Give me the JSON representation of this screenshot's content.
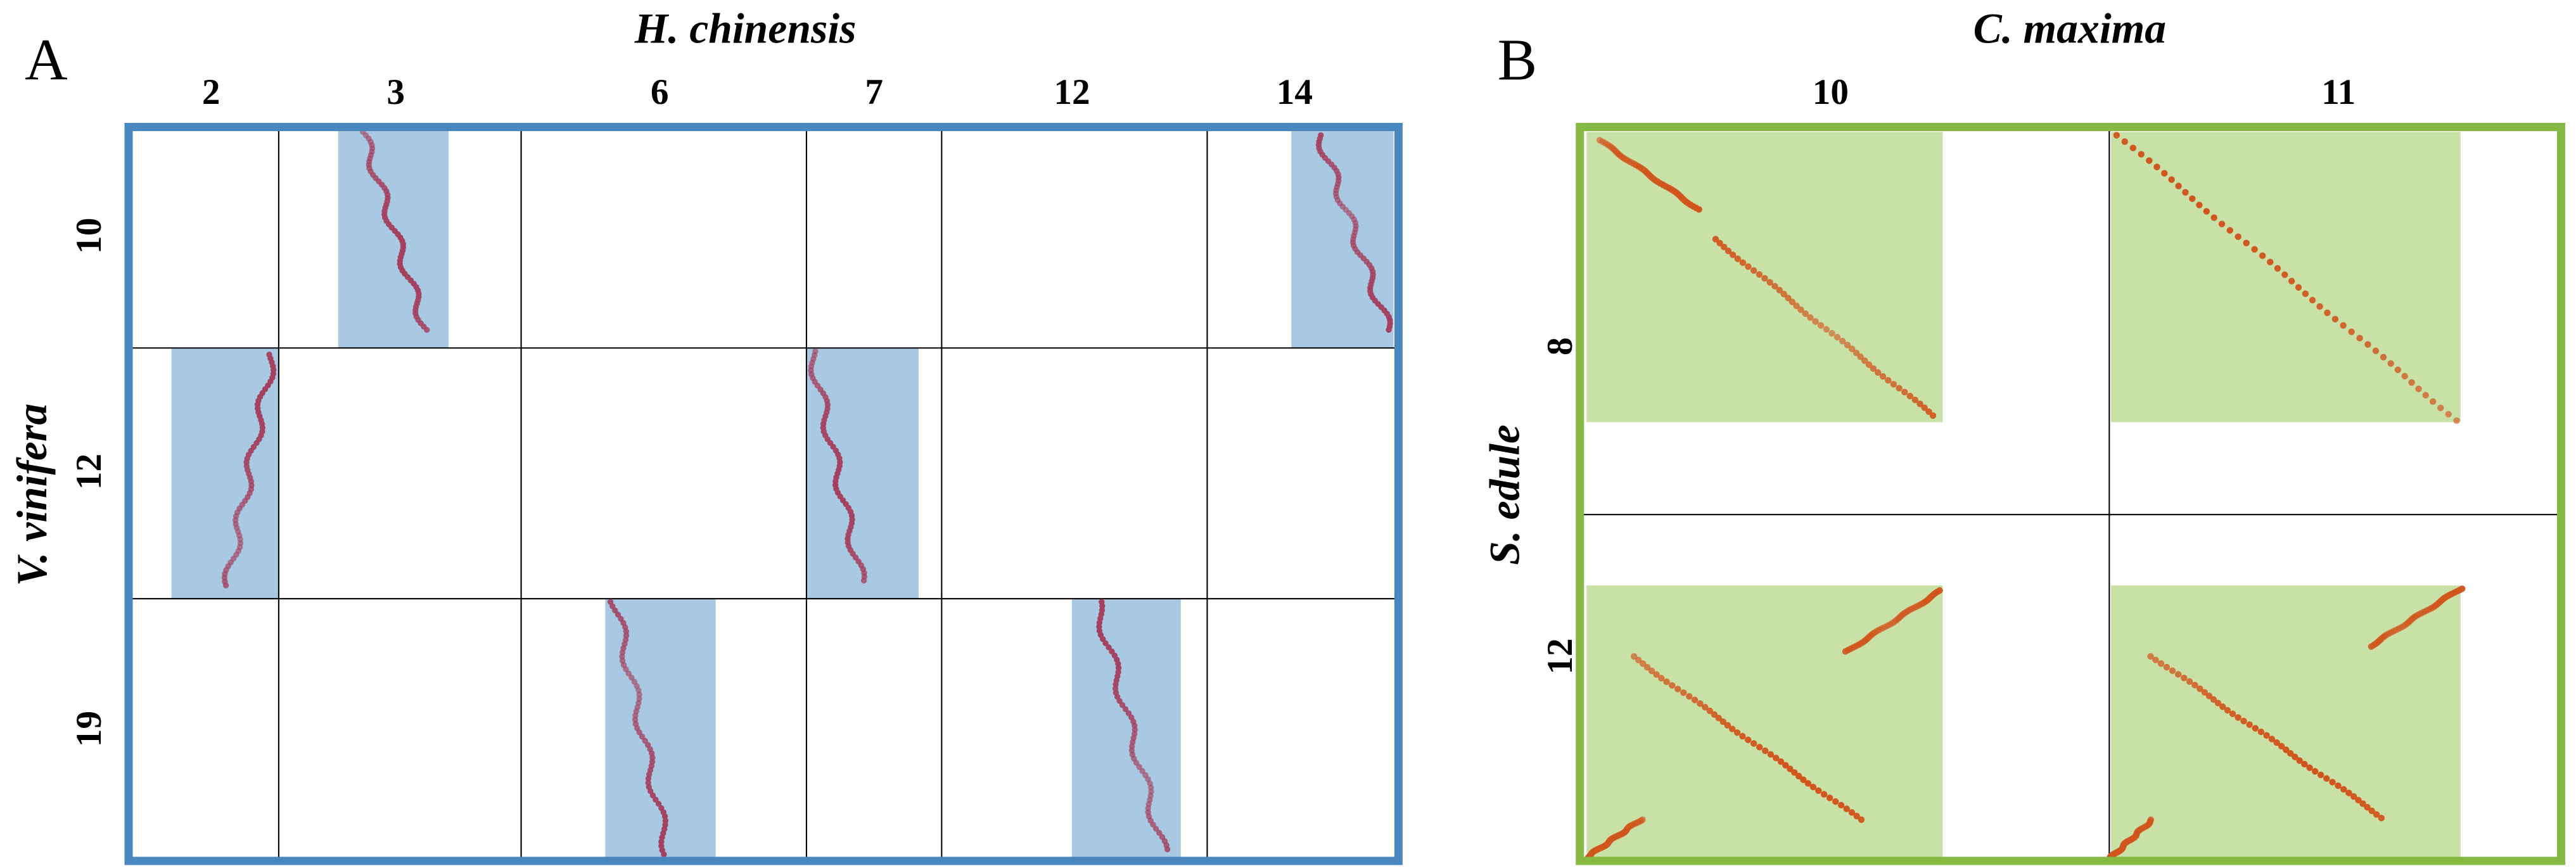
{
  "panel_a": {
    "label": "A",
    "title": "H. chinensis",
    "columns": [
      "2",
      "3",
      "6",
      "7",
      "12",
      "14"
    ],
    "y_title": "V. vinifera",
    "rows": [
      "10",
      "12",
      "19"
    ]
  },
  "panel_b": {
    "label": "B",
    "title": "C. maxima",
    "columns": [
      "10",
      "11"
    ],
    "y_title": "S. edule",
    "rows": [
      "8",
      "12"
    ]
  }
}
